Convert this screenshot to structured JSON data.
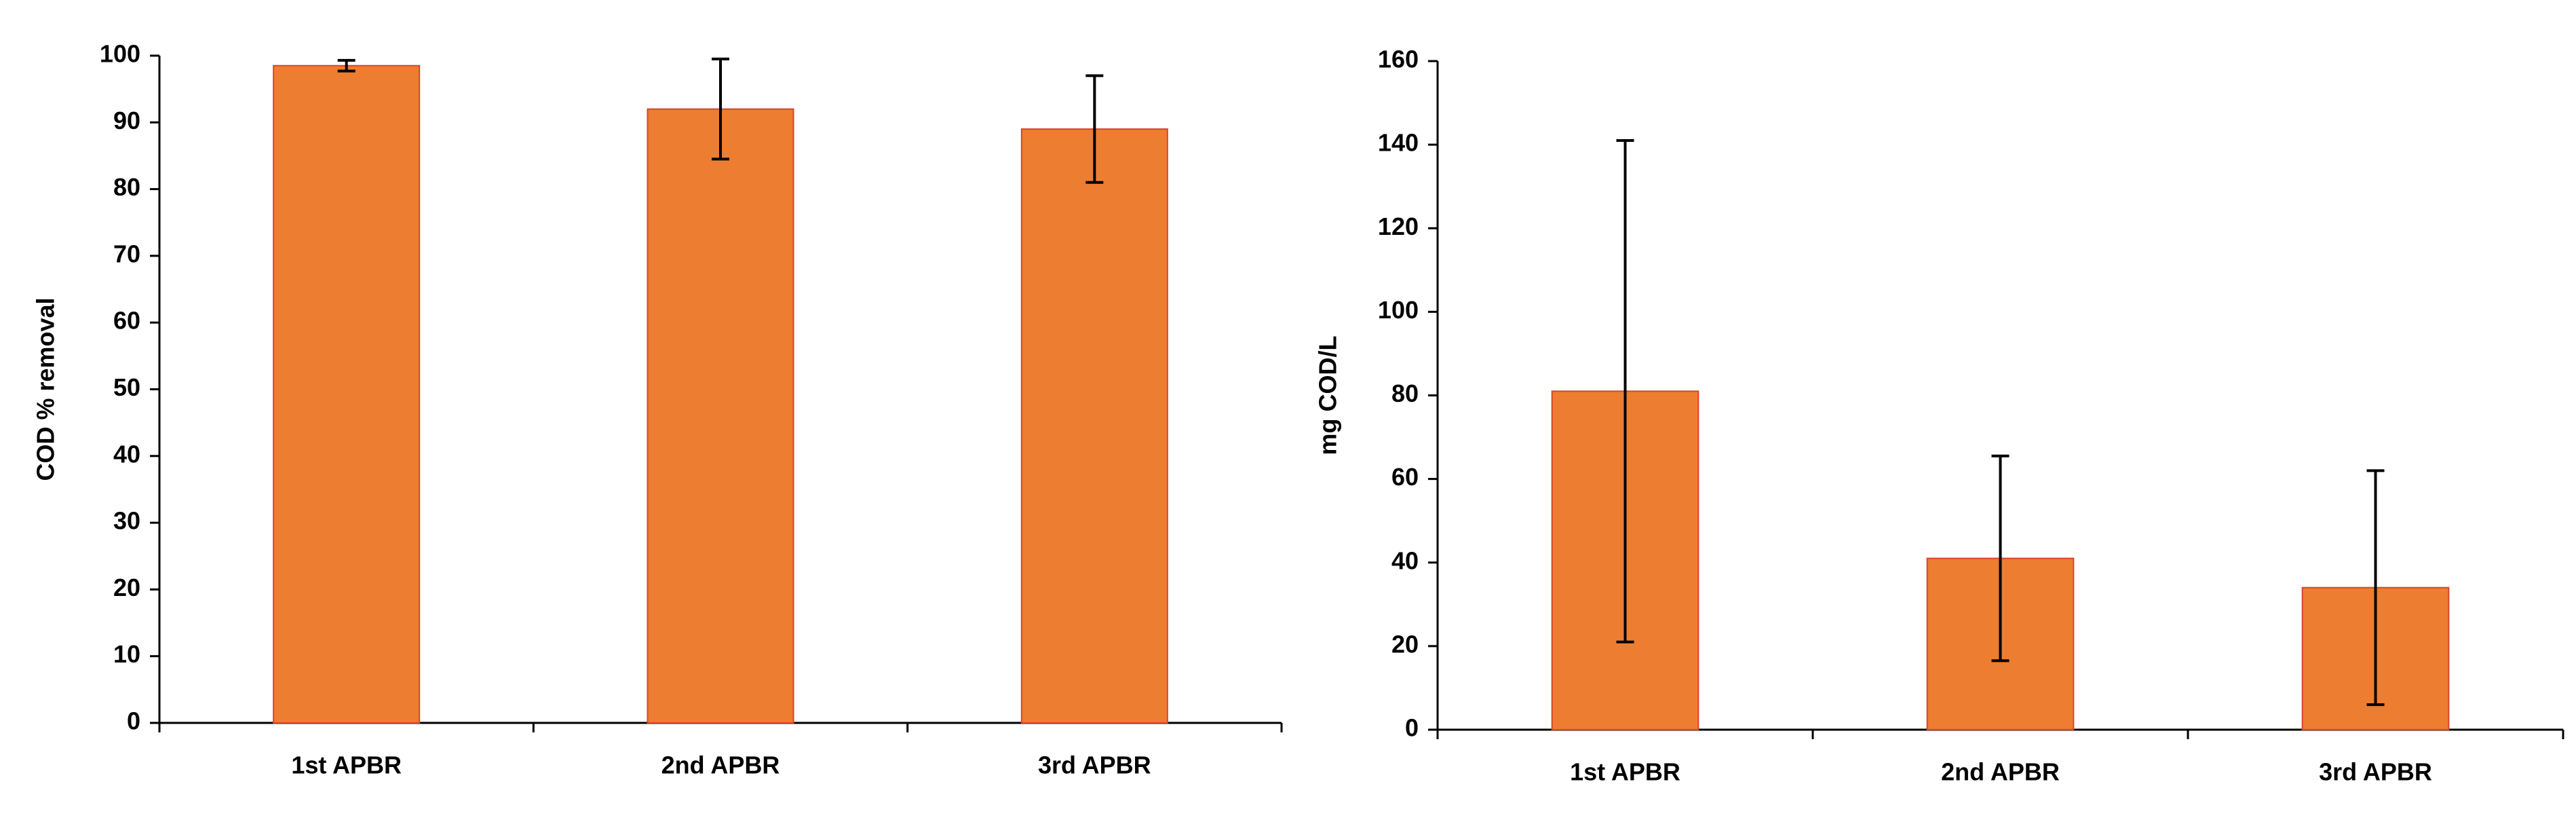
{
  "chart_data": [
    {
      "type": "bar",
      "ylabel": "COD % removal",
      "categories": [
        "1st APBR",
        "2nd APBR",
        "3rd APBR"
      ],
      "values": [
        98.5,
        92,
        89
      ],
      "errors": [
        0.8,
        7.5,
        8
      ],
      "color": "#ed7d31",
      "ylim": [
        0,
        100
      ],
      "yticks": [
        0,
        10,
        20,
        30,
        40,
        50,
        60,
        70,
        80,
        90,
        100
      ]
    },
    {
      "type": "bar",
      "ylabel": "mg COD/L",
      "categories": [
        "1st APBR",
        "2nd APBR",
        "3rd APBR"
      ],
      "values": [
        81,
        41,
        34
      ],
      "errors": [
        60,
        24.5,
        28
      ],
      "color": "#ed7d31",
      "ylim": [
        0,
        160
      ],
      "yticks": [
        0,
        20,
        40,
        60,
        80,
        100,
        120,
        140,
        160
      ]
    }
  ]
}
